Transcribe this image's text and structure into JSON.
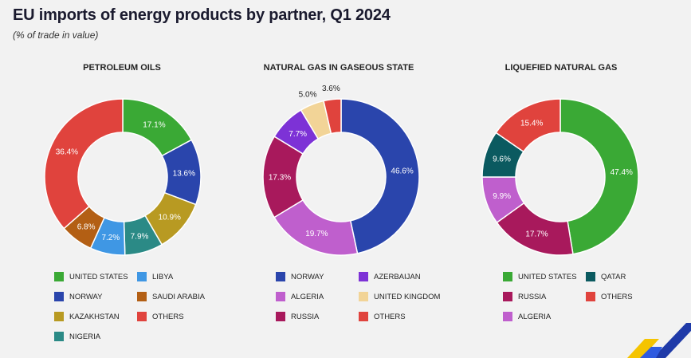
{
  "header": {
    "title": "EU imports of energy products by partner, Q1 2024",
    "subtitle": "(% of trade in value)"
  },
  "colors": {
    "green": "#3aa935",
    "blue": "#2a45ac",
    "olive": "#b89a22",
    "teal": "#2b8a86",
    "lightblue": "#3f97e4",
    "brown": "#b35f14",
    "red": "#e0433d",
    "purple": "#7d32d6",
    "lilac": "#bf5fcd",
    "cream": "#f2d497",
    "maroon": "#a8195c",
    "darkteal": "#0b5a60"
  },
  "chart_data": [
    {
      "type": "pie",
      "title": "PETROLEUM OILS",
      "categories": [
        "UNITED STATES",
        "NORWAY",
        "KAZAKHSTAN",
        "NIGERIA",
        "LIBYA",
        "SAUDI ARABIA",
        "OTHERS"
      ],
      "values": [
        17.1,
        13.6,
        10.9,
        7.9,
        7.2,
        6.8,
        36.4
      ],
      "labels": [
        "17.1%",
        "13.6%",
        "10.9%",
        "7.9%",
        "7.2%",
        "6.8%",
        "36.4%"
      ],
      "colors": [
        "#3aa935",
        "#2a45ac",
        "#b89a22",
        "#2b8a86",
        "#3f97e4",
        "#b35f14",
        "#e0433d"
      ],
      "legend": [
        "UNITED STATES",
        "LIBYA",
        "NORWAY",
        "SAUDI ARABIA",
        "KAZAKHSTAN",
        "OTHERS",
        "NIGERIA"
      ],
      "legend_colors": [
        "#3aa935",
        "#3f97e4",
        "#2a45ac",
        "#b35f14",
        "#b89a22",
        "#e0433d",
        "#2b8a86"
      ]
    },
    {
      "type": "pie",
      "title": "NATURAL GAS IN GASEOUS STATE",
      "categories": [
        "NORWAY",
        "ALGERIA",
        "RUSSIA",
        "AZERBAIJAN",
        "UNITED KINGDOM",
        "OTHERS"
      ],
      "values": [
        46.6,
        19.7,
        17.3,
        7.7,
        5.0,
        3.6
      ],
      "labels": [
        "46.6%",
        "19.7%",
        "17.3%",
        "7.7%",
        "5.0%",
        "3.6%"
      ],
      "colors": [
        "#2a45ac",
        "#bf5fcd",
        "#a8195c",
        "#7d32d6",
        "#f2d497",
        "#e0433d"
      ],
      "legend": [
        "NORWAY",
        "AZERBAIJAN",
        "ALGERIA",
        "UNITED KINGDOM",
        "RUSSIA",
        "OTHERS"
      ],
      "legend_colors": [
        "#2a45ac",
        "#7d32d6",
        "#bf5fcd",
        "#f2d497",
        "#a8195c",
        "#e0433d"
      ]
    },
    {
      "type": "pie",
      "title": "LIQUEFIED NATURAL GAS",
      "categories": [
        "UNITED STATES",
        "RUSSIA",
        "ALGERIA",
        "QATAR",
        "OTHERS"
      ],
      "values": [
        47.4,
        17.7,
        9.9,
        9.6,
        15.4
      ],
      "labels": [
        "47.4%",
        "17.7%",
        "9.9%",
        "9.6%",
        "15.4%"
      ],
      "colors": [
        "#3aa935",
        "#a8195c",
        "#bf5fcd",
        "#0b5a60",
        "#e0433d"
      ],
      "legend": [
        "UNITED STATES",
        "QATAR",
        "RUSSIA",
        "OTHERS",
        "ALGERIA"
      ],
      "legend_colors": [
        "#3aa935",
        "#0b5a60",
        "#a8195c",
        "#e0433d",
        "#bf5fcd"
      ]
    }
  ]
}
